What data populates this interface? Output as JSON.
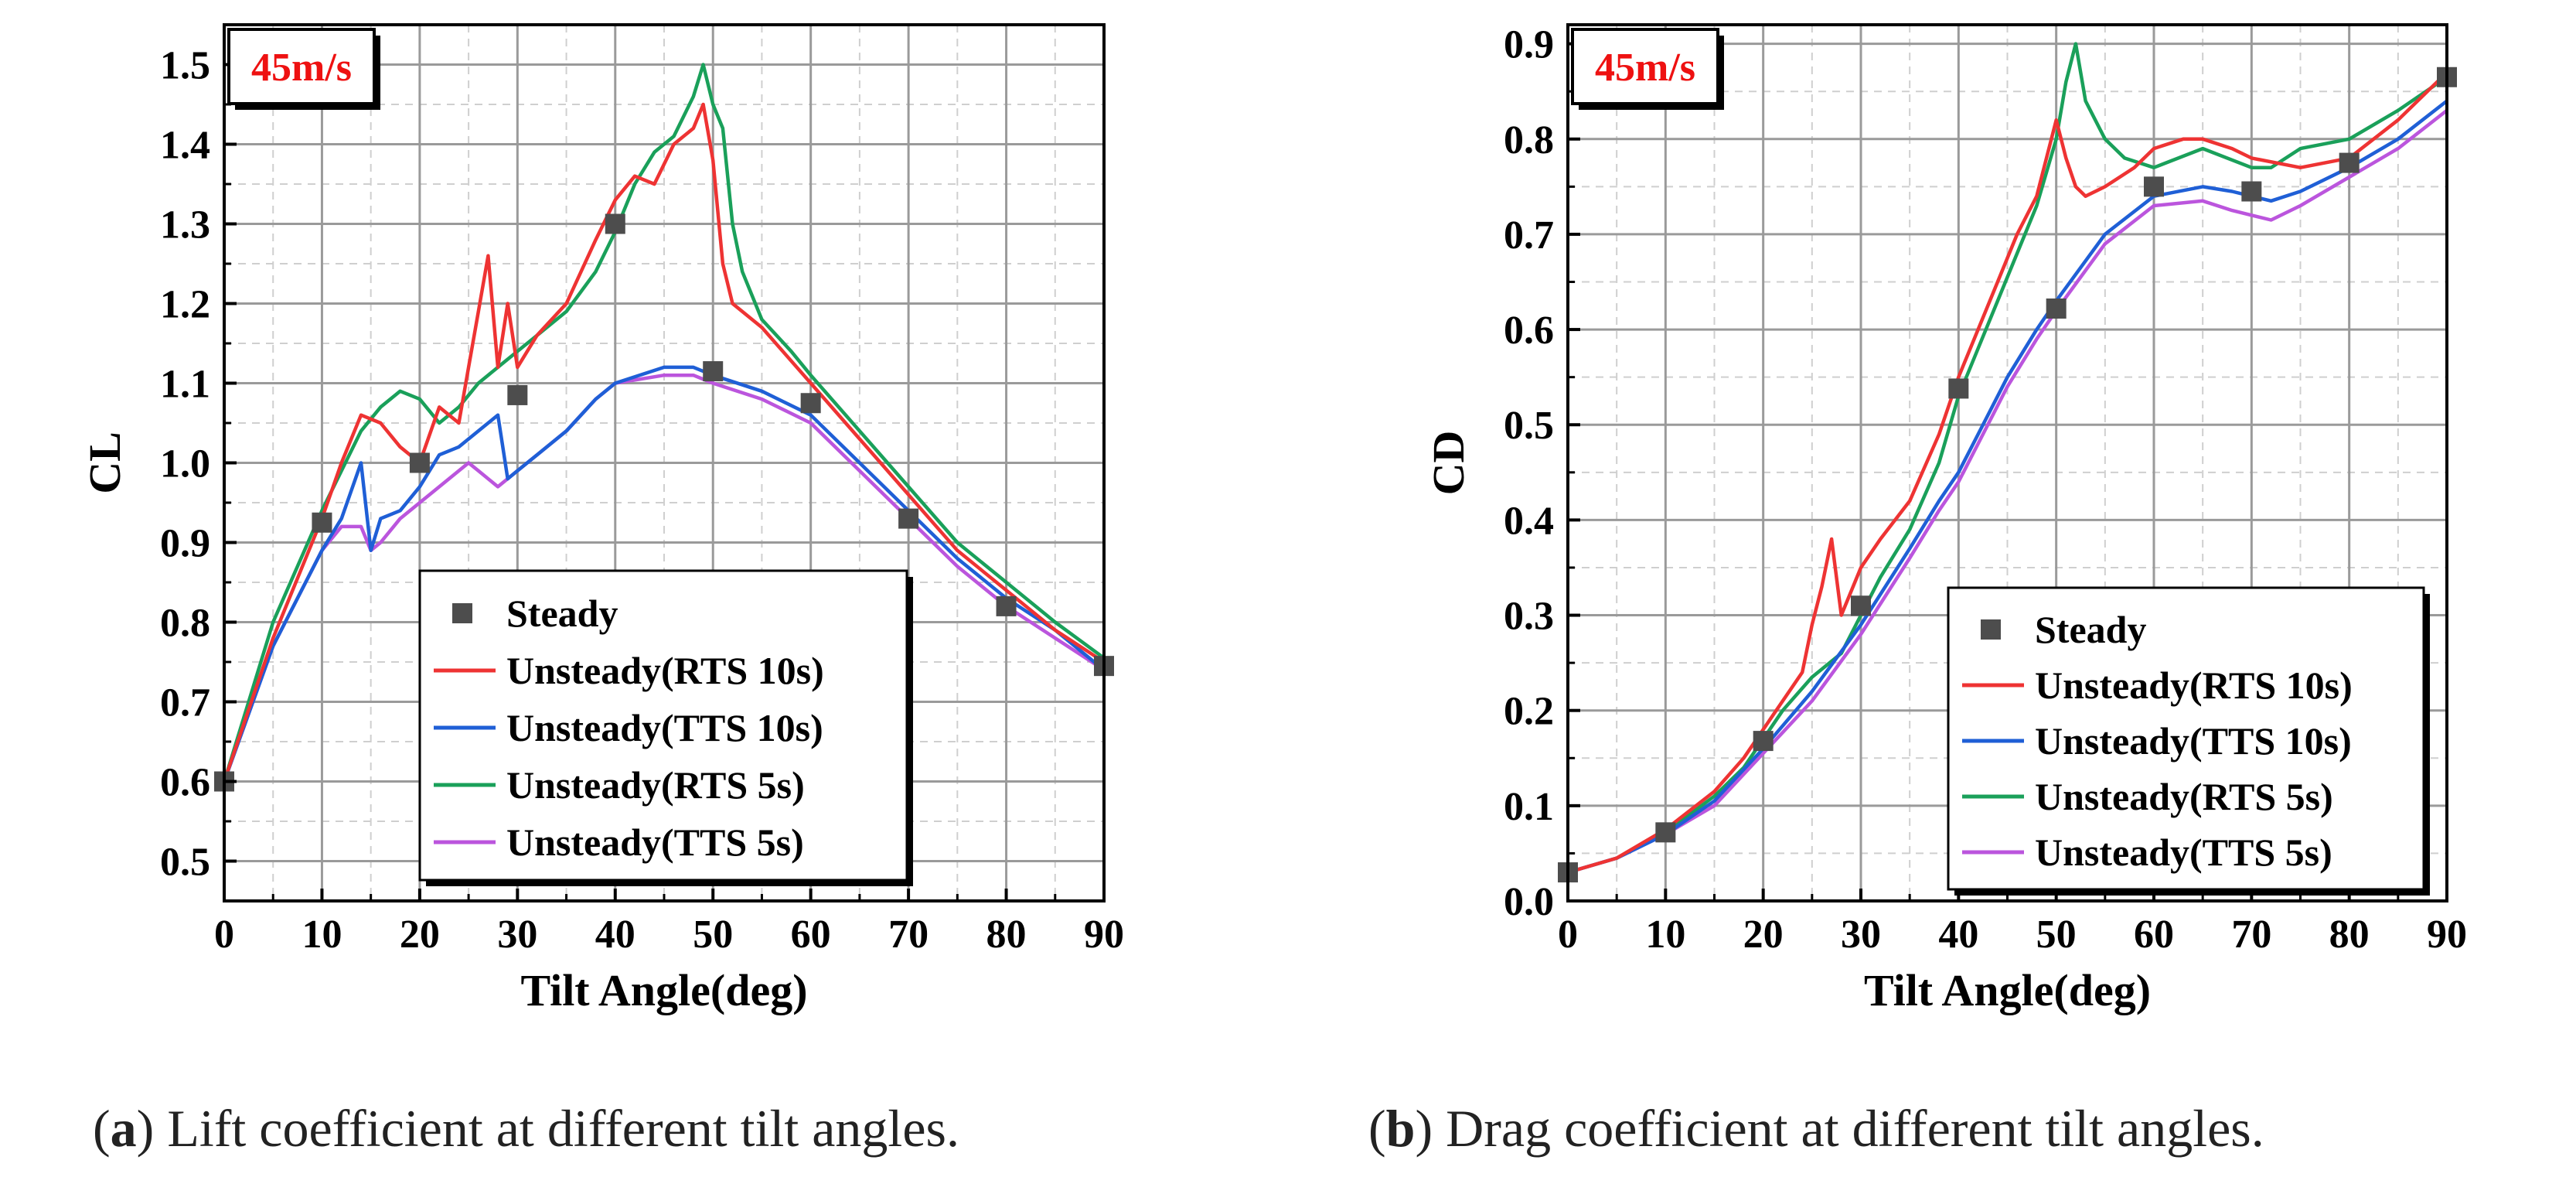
{
  "charts": [
    {
      "badge": "45m/s",
      "caption": {
        "letter": "a",
        "text": "Lift coefficient at different tilt angles."
      }
    },
    {
      "badge": "45m/s",
      "caption": {
        "letter": "b",
        "text": "Drag coefficient at different tilt angles."
      }
    }
  ],
  "colors": {
    "steady": "#4d4d4d",
    "rts10": "#ee3333",
    "tts10": "#1f5fd6",
    "rts5": "#1aa05a",
    "tts5": "#bb55dd",
    "badge": "#ee1111"
  },
  "chart_data": [
    {
      "type": "line",
      "title": "Lift coefficient at different tilt angles.",
      "xlabel": "Tilt Angle(deg)",
      "ylabel": "CL",
      "xlim": [
        0,
        90
      ],
      "ylim": [
        0.45,
        1.55
      ],
      "xticks": [
        0,
        10,
        20,
        30,
        40,
        50,
        60,
        70,
        80,
        90
      ],
      "yticks": [
        0.5,
        0.6,
        0.7,
        0.8,
        0.9,
        1.0,
        1.1,
        1.2,
        1.3,
        1.4,
        1.5
      ],
      "ytick_labels": [
        "0.5",
        "0.6",
        "0.7",
        "0.8",
        "0.9",
        "1.0",
        "1.1",
        "1.2",
        "1.3",
        "1.4",
        "1.5"
      ],
      "annotation": "45m/s",
      "grid": true,
      "legend": "bottom-center",
      "series": [
        {
          "name": "Steady",
          "kind": "marker",
          "x": [
            0,
            10,
            20,
            30,
            40,
            50,
            60,
            70,
            80,
            90
          ],
          "y": [
            0.6,
            0.925,
            1.0,
            1.085,
            1.3,
            1.115,
            1.075,
            0.93,
            0.82,
            0.745
          ]
        },
        {
          "name": "Unsteady(RTS 10s)",
          "kind": "line",
          "x": [
            0,
            5,
            10,
            12,
            14,
            16,
            18,
            20,
            22,
            24,
            25,
            26,
            27,
            28,
            29,
            30,
            32,
            35,
            38,
            40,
            42,
            44,
            46,
            48,
            49,
            50,
            51,
            52,
            55,
            60,
            65,
            70,
            75,
            80,
            85,
            90
          ],
          "y": [
            0.6,
            0.78,
            0.93,
            1.0,
            1.06,
            1.05,
            1.02,
            1.0,
            1.07,
            1.05,
            1.12,
            1.19,
            1.26,
            1.12,
            1.2,
            1.12,
            1.16,
            1.2,
            1.28,
            1.33,
            1.36,
            1.35,
            1.4,
            1.42,
            1.45,
            1.38,
            1.25,
            1.2,
            1.17,
            1.1,
            1.03,
            0.96,
            0.89,
            0.84,
            0.79,
            0.75
          ]
        },
        {
          "name": "Unsteady(TTS 10s)",
          "kind": "line",
          "x": [
            0,
            5,
            10,
            12,
            14,
            15,
            16,
            18,
            20,
            22,
            24,
            26,
            28,
            29,
            30,
            32,
            35,
            38,
            40,
            45,
            48,
            50,
            55,
            60,
            65,
            70,
            75,
            80,
            85,
            90
          ],
          "y": [
            0.6,
            0.77,
            0.89,
            0.93,
            1.0,
            0.89,
            0.93,
            0.94,
            0.97,
            1.01,
            1.02,
            1.04,
            1.06,
            0.98,
            0.99,
            1.01,
            1.04,
            1.08,
            1.1,
            1.12,
            1.12,
            1.11,
            1.09,
            1.06,
            1.0,
            0.94,
            0.88,
            0.83,
            0.79,
            0.74
          ]
        },
        {
          "name": "Unsteady(RTS 5s)",
          "kind": "line",
          "x": [
            0,
            5,
            10,
            12,
            14,
            16,
            18,
            20,
            22,
            24,
            26,
            28,
            30,
            32,
            35,
            38,
            40,
            42,
            44,
            46,
            48,
            49,
            50,
            51,
            52,
            53,
            55,
            58,
            60,
            65,
            70,
            75,
            80,
            85,
            90
          ],
          "y": [
            0.6,
            0.8,
            0.94,
            0.99,
            1.04,
            1.07,
            1.09,
            1.08,
            1.05,
            1.07,
            1.1,
            1.12,
            1.14,
            1.16,
            1.19,
            1.24,
            1.29,
            1.35,
            1.39,
            1.41,
            1.46,
            1.5,
            1.45,
            1.42,
            1.3,
            1.24,
            1.18,
            1.14,
            1.11,
            1.04,
            0.97,
            0.9,
            0.85,
            0.8,
            0.755
          ]
        },
        {
          "name": "Unsteady(TTS 5s)",
          "kind": "line",
          "x": [
            0,
            5,
            10,
            12,
            14,
            15,
            16,
            18,
            20,
            22,
            24,
            25,
            26,
            28,
            30,
            32,
            35,
            38,
            40,
            45,
            48,
            50,
            55,
            60,
            65,
            70,
            75,
            80,
            85,
            90
          ],
          "y": [
            0.6,
            0.77,
            0.89,
            0.92,
            0.92,
            0.89,
            0.9,
            0.93,
            0.95,
            0.97,
            0.99,
            1.0,
            0.99,
            0.97,
            0.99,
            1.01,
            1.04,
            1.08,
            1.1,
            1.11,
            1.11,
            1.1,
            1.08,
            1.05,
            0.99,
            0.93,
            0.87,
            0.82,
            0.78,
            0.74
          ]
        }
      ]
    },
    {
      "type": "line",
      "title": "Drag coefficient at different tilt angles.",
      "xlabel": "Tilt Angle(deg)",
      "ylabel": "CD",
      "xlim": [
        0,
        90
      ],
      "ylim": [
        0,
        0.92
      ],
      "xticks": [
        0,
        10,
        20,
        30,
        40,
        50,
        60,
        70,
        80,
        90
      ],
      "yticks": [
        0,
        0.1,
        0.2,
        0.3,
        0.4,
        0.5,
        0.6,
        0.7,
        0.8,
        0.9
      ],
      "ytick_labels": [
        "0.0",
        "0.1",
        "0.2",
        "0.3",
        "0.4",
        "0.5",
        "0.6",
        "0.7",
        "0.8",
        "0.9"
      ],
      "annotation": "45m/s",
      "grid": true,
      "legend": "bottom-right",
      "series": [
        {
          "name": "Steady",
          "kind": "marker",
          "x": [
            0,
            10,
            20,
            30,
            40,
            50,
            60,
            70,
            80,
            90
          ],
          "y": [
            0.03,
            0.072,
            0.168,
            0.31,
            0.538,
            0.622,
            0.75,
            0.745,
            0.775,
            0.865
          ]
        },
        {
          "name": "Unsteady(RTS 10s)",
          "kind": "line",
          "x": [
            0,
            5,
            10,
            15,
            18,
            20,
            22,
            24,
            25,
            26,
            27,
            28,
            30,
            32,
            35,
            38,
            40,
            42,
            44,
            46,
            48,
            50,
            51,
            52,
            53,
            55,
            58,
            60,
            63,
            65,
            68,
            70,
            75,
            80,
            85,
            90
          ],
          "y": [
            0.03,
            0.045,
            0.075,
            0.115,
            0.15,
            0.18,
            0.21,
            0.24,
            0.29,
            0.33,
            0.38,
            0.3,
            0.35,
            0.38,
            0.42,
            0.49,
            0.55,
            0.6,
            0.65,
            0.7,
            0.74,
            0.82,
            0.78,
            0.75,
            0.74,
            0.75,
            0.77,
            0.79,
            0.8,
            0.8,
            0.79,
            0.78,
            0.77,
            0.78,
            0.82,
            0.87
          ]
        },
        {
          "name": "Unsteady(TTS 10s)",
          "kind": "line",
          "x": [
            0,
            5,
            10,
            15,
            20,
            25,
            30,
            35,
            38,
            40,
            42,
            45,
            48,
            50,
            55,
            60,
            65,
            68,
            70,
            72,
            75,
            80,
            85,
            90
          ],
          "y": [
            0.03,
            0.045,
            0.07,
            0.105,
            0.16,
            0.22,
            0.29,
            0.37,
            0.42,
            0.45,
            0.49,
            0.55,
            0.6,
            0.63,
            0.7,
            0.74,
            0.75,
            0.745,
            0.74,
            0.735,
            0.745,
            0.77,
            0.8,
            0.84
          ]
        },
        {
          "name": "Unsteady(RTS 5s)",
          "kind": "line",
          "x": [
            0,
            5,
            10,
            15,
            18,
            20,
            22,
            25,
            28,
            30,
            32,
            35,
            38,
            40,
            42,
            44,
            46,
            48,
            50,
            51,
            52,
            53,
            54,
            55,
            57,
            60,
            65,
            70,
            72,
            75,
            80,
            85,
            90
          ],
          "y": [
            0.03,
            0.045,
            0.072,
            0.11,
            0.14,
            0.17,
            0.2,
            0.235,
            0.26,
            0.3,
            0.34,
            0.39,
            0.46,
            0.53,
            0.58,
            0.63,
            0.68,
            0.73,
            0.8,
            0.86,
            0.9,
            0.84,
            0.82,
            0.8,
            0.78,
            0.77,
            0.79,
            0.77,
            0.77,
            0.79,
            0.8,
            0.83,
            0.865
          ]
        },
        {
          "name": "Unsteady(TTS 5s)",
          "kind": "line",
          "x": [
            0,
            5,
            10,
            15,
            20,
            25,
            30,
            35,
            38,
            40,
            42,
            45,
            48,
            50,
            55,
            60,
            65,
            68,
            70,
            72,
            75,
            80,
            85,
            90
          ],
          "y": [
            0.03,
            0.045,
            0.07,
            0.1,
            0.155,
            0.21,
            0.28,
            0.36,
            0.41,
            0.44,
            0.48,
            0.54,
            0.59,
            0.62,
            0.69,
            0.73,
            0.735,
            0.725,
            0.72,
            0.715,
            0.73,
            0.76,
            0.79,
            0.83
          ]
        }
      ]
    }
  ]
}
